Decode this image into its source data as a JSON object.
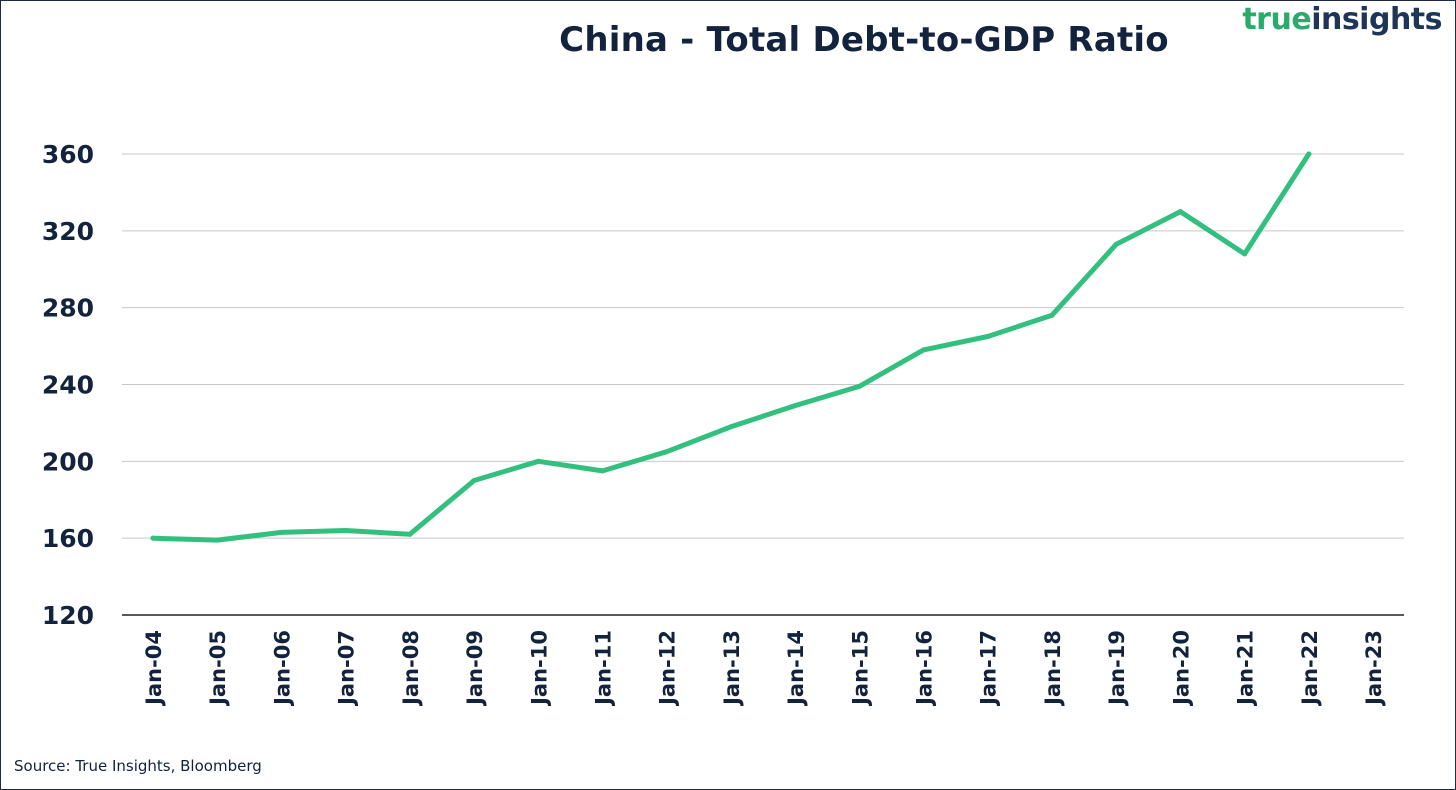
{
  "logo": {
    "word1": "true",
    "word2": "insights"
  },
  "source": "Source: True Insights, Bloomberg",
  "colors": {
    "line": "#33c07f",
    "grid": "#c8c8c8",
    "axis": "#222222",
    "text": "#13223d",
    "logo_green": "#2aab6b",
    "logo_navy": "#1d3557"
  },
  "chart_data": {
    "type": "line",
    "title": "China - Total Debt-to-GDP Ratio",
    "xlabel": "",
    "ylabel": "",
    "categories": [
      "Jan-04",
      "Jan-05",
      "Jan-06",
      "Jan-07",
      "Jan-08",
      "Jan-09",
      "Jan-10",
      "Jan-11",
      "Jan-12",
      "Jan-13",
      "Jan-14",
      "Jan-15",
      "Jan-16",
      "Jan-17",
      "Jan-18",
      "Jan-19",
      "Jan-20",
      "Jan-21",
      "Jan-22",
      "Jan-23"
    ],
    "yticks": [
      "360",
      "320",
      "280",
      "240",
      "200",
      "160",
      "120"
    ],
    "ylim": [
      120,
      360
    ],
    "grid": true,
    "series": [
      {
        "name": "China Total Debt-to-GDP",
        "values": [
          160,
          159,
          163,
          164,
          162,
          190,
          200,
          195,
          205,
          218,
          229,
          239,
          258,
          265,
          276,
          313,
          330,
          308,
          360,
          null
        ]
      }
    ]
  }
}
